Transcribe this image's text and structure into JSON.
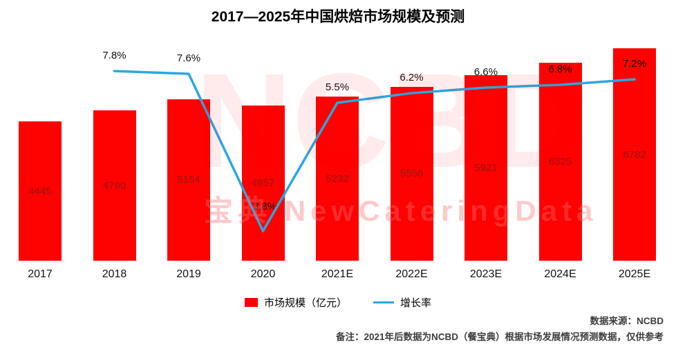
{
  "title": "2017—2025年中国烘焙市场规模及预测",
  "watermark": {
    "big": "NCBD",
    "line": "宝典 NewCateringData"
  },
  "legend": {
    "bars": "市场规模（亿元）",
    "line": "增长率"
  },
  "notes": {
    "source": "数据来源：NCBD",
    "remark": "备注：2021年后数据为NCBD（餐宝典）根据市场发展情况预测数据，仅供参考"
  },
  "colors": {
    "bar": "#fe0101",
    "line": "#29a8e0",
    "bar_label": "#9a1313",
    "percent_label": "#111111"
  },
  "chart_data": {
    "type": "bar+line",
    "title": "2017—2025年中国烘焙市场规模及预测",
    "categories": [
      "2017",
      "2018",
      "2019",
      "2020",
      "2021E",
      "2022E",
      "2023E",
      "2024E",
      "2025E"
    ],
    "series": [
      {
        "name": "市场规模（亿元）",
        "type": "bar",
        "unit": "亿元",
        "values": [
          4445,
          4790,
          5154,
          4957,
          5232,
          5556,
          5921,
          6325,
          6782
        ]
      },
      {
        "name": "增长率",
        "type": "line",
        "unit": "%",
        "values": [
          null,
          7.8,
          7.6,
          -3.8,
          5.5,
          6.2,
          6.6,
          6.8,
          7.2
        ]
      }
    ],
    "grid": false,
    "axes_visible": false,
    "legend_position": "bottom",
    "value_labels": "inside-bars and above line points"
  }
}
